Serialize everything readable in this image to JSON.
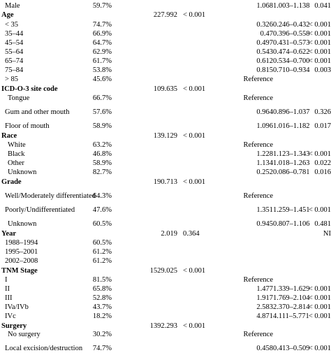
{
  "rows": [
    {
      "label": "Male",
      "pct": "59.7%",
      "chi": "",
      "p1": "",
      "hr": "1.068",
      "ci": "1.003–1.138",
      "p2": "0.041",
      "header": false
    },
    {
      "label": "Age",
      "pct": "",
      "chi": "227.992",
      "p1": "< 0.001",
      "hr": "",
      "ci": "",
      "p2": "",
      "header": true
    },
    {
      "label": "< 35",
      "pct": "74.7%",
      "chi": "",
      "p1": "",
      "hr": "0.326",
      "ci": "0.246–0.432",
      "p2": "< 0.001",
      "header": false
    },
    {
      "label": "35–44",
      "pct": "66.9%",
      "chi": "",
      "p1": "",
      "hr": "0.47",
      "ci": "0.396–0.558",
      "p2": "< 0.001",
      "header": false
    },
    {
      "label": "45–54",
      "pct": "64.7%",
      "chi": "",
      "p1": "",
      "hr": "0.497",
      "ci": "0.431–0.573",
      "p2": "< 0.001",
      "header": false
    },
    {
      "label": "55–64",
      "pct": "62.9%",
      "chi": "",
      "p1": "",
      "hr": "0.543",
      "ci": "0.474–0.622",
      "p2": "< 0.001",
      "header": false
    },
    {
      "label": "65–74",
      "pct": "61.7%",
      "chi": "",
      "p1": "",
      "hr": "0.612",
      "ci": "0.534–0.700",
      "p2": "< 0.001",
      "header": false
    },
    {
      "label": "75–84",
      "pct": "53.8%",
      "chi": "",
      "p1": "",
      "hr": "0.815",
      "ci": "0.710–0.934",
      "p2": "0.003",
      "header": false
    },
    {
      "label": "> 85",
      "pct": "45.6%",
      "chi": "",
      "p1": "",
      "hr": "Reference",
      "ci": "",
      "p2": "",
      "header": false
    },
    {
      "label": "ICD-O-3 site code",
      "pct": "",
      "chi": "109.635",
      "p1": "< 0.001",
      "hr": "",
      "ci": "",
      "p2": "",
      "header": true
    },
    {
      "label": "Tongue",
      "pct": "66.7%",
      "chi": "",
      "p1": "",
      "hr": "Reference",
      "ci": "",
      "p2": "",
      "header": false
    },
    {
      "label": "Gum and other mouth",
      "pct": "57.6%",
      "chi": "",
      "p1": "",
      "hr": "0.964",
      "ci": "0.896–1.037",
      "p2": "0.326",
      "header": false
    },
    {
      "label": "Floor of mouth",
      "pct": "58.9%",
      "chi": "",
      "p1": "",
      "hr": "1.096",
      "ci": "1.016–1.182",
      "p2": "0.017",
      "header": false
    },
    {
      "label": "Race",
      "pct": "",
      "chi": "139.129",
      "p1": "< 0.001",
      "hr": "",
      "ci": "",
      "p2": "",
      "header": true
    },
    {
      "label": "White",
      "pct": "63.2%",
      "chi": "",
      "p1": "",
      "hr": "Reference",
      "ci": "",
      "p2": "",
      "header": false
    },
    {
      "label": "Black",
      "pct": "46.8%",
      "chi": "",
      "p1": "",
      "hr": "1.228",
      "ci": "1.123–1.343",
      "p2": "< 0.001",
      "header": false
    },
    {
      "label": "Other",
      "pct": "58.9%",
      "chi": "",
      "p1": "",
      "hr": "1.134",
      "ci": "1.018–1.263",
      "p2": "0.022",
      "header": false
    },
    {
      "label": "Unknown",
      "pct": "82.7%",
      "chi": "",
      "p1": "",
      "hr": "0.252",
      "ci": "0.086–0.781",
      "p2": "0.016",
      "header": false
    },
    {
      "label": "Grade",
      "pct": "",
      "chi": "190.713",
      "p1": "< 0.001",
      "hr": "",
      "ci": "",
      "p2": "",
      "header": true
    },
    {
      "label": "Well/Moderately differentiated",
      "pct": "64.3%",
      "chi": "",
      "p1": "",
      "hr": "Reference",
      "ci": "",
      "p2": "",
      "header": false
    },
    {
      "label": "Poorly/Undifferentiated",
      "pct": "47.6%",
      "chi": "",
      "p1": "",
      "hr": "1.351",
      "ci": "1.259–1.451",
      "p2": "< 0.001",
      "header": false
    },
    {
      "label": "Unknown",
      "pct": "60.5%",
      "chi": "",
      "p1": "",
      "hr": "0.945",
      "ci": "0.807–1.106",
      "p2": "0.481",
      "header": false
    },
    {
      "label": "Year",
      "pct": "",
      "chi": "2.019",
      "p1": "0.364",
      "hr": "",
      "ci": "",
      "p2": "NI",
      "header": true
    },
    {
      "label": "1988–1994",
      "pct": "60.5%",
      "chi": "",
      "p1": "",
      "hr": "",
      "ci": "",
      "p2": "",
      "header": false
    },
    {
      "label": "1995–2001",
      "pct": "61.2%",
      "chi": "",
      "p1": "",
      "hr": "",
      "ci": "",
      "p2": "",
      "header": false
    },
    {
      "label": "2002–2008",
      "pct": "61.2%",
      "chi": "",
      "p1": "",
      "hr": "",
      "ci": "",
      "p2": "",
      "header": false
    },
    {
      "label": "TNM Stage",
      "pct": "",
      "chi": "1529.025",
      "p1": "< 0.001",
      "hr": "",
      "ci": "",
      "p2": "",
      "header": true
    },
    {
      "label": "I",
      "pct": "81.5%",
      "chi": "",
      "p1": "",
      "hr": "Reference",
      "ci": "",
      "p2": "",
      "header": false
    },
    {
      "label": "II",
      "pct": "65.8%",
      "chi": "",
      "p1": "",
      "hr": "1.477",
      "ci": "1.339–1.629",
      "p2": "< 0.001",
      "header": false
    },
    {
      "label": "III",
      "pct": "52.8%",
      "chi": "",
      "p1": "",
      "hr": "1.917",
      "ci": "1.769–2.104",
      "p2": "< 0.001",
      "header": false
    },
    {
      "label": "IVa/IVb",
      "pct": "43.7%",
      "chi": "",
      "p1": "",
      "hr": "2.583",
      "ci": "2.370–2.814",
      "p2": "< 0.001",
      "header": false
    },
    {
      "label": "IVc",
      "pct": "18.2%",
      "chi": "",
      "p1": "",
      "hr": "4.871",
      "ci": "4.111–5.771",
      "p2": "< 0.001",
      "header": false
    },
    {
      "label": "Surgery",
      "pct": "",
      "chi": "1392.293",
      "p1": "< 0.001",
      "hr": "",
      "ci": "",
      "p2": "",
      "header": true
    },
    {
      "label": "No surgery",
      "pct": "30.2%",
      "chi": "",
      "p1": "",
      "hr": "Reference",
      "ci": "",
      "p2": "",
      "header": false
    },
    {
      "label": "Local excision/destruction",
      "pct": "74.7%",
      "chi": "",
      "p1": "",
      "hr": "0.458",
      "ci": "0.413–0.509",
      "p2": "< 0.001",
      "header": false
    }
  ]
}
